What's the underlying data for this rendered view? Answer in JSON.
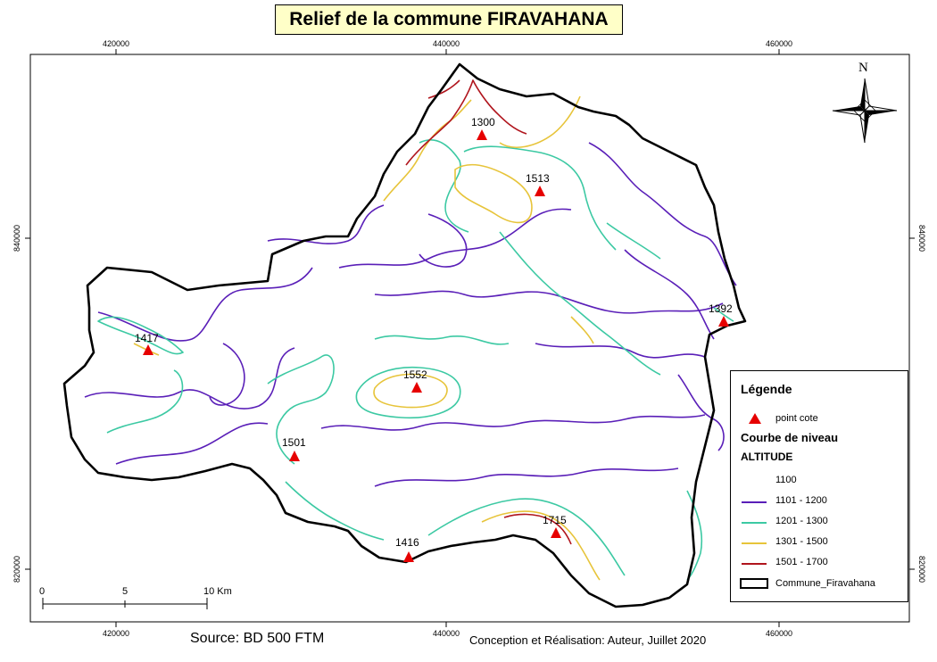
{
  "title": "Relief de la commune FIRAVAHANA",
  "ticks": {
    "top": [
      "420000",
      "440000",
      "460000"
    ],
    "bottom": [
      "420000",
      "440000",
      "460000"
    ],
    "left": [
      "840000",
      "820000"
    ],
    "right": [
      "840000",
      "820000"
    ]
  },
  "north_label": "N",
  "spot_heights": [
    {
      "label": "1300"
    },
    {
      "label": "1513"
    },
    {
      "label": "1392"
    },
    {
      "label": "1417"
    },
    {
      "label": "1552"
    },
    {
      "label": "1501"
    },
    {
      "label": "1715"
    },
    {
      "label": "1416"
    }
  ],
  "legend": {
    "title": "Légende",
    "spot_label": "point cote",
    "contour_title": "Courbe de niveau",
    "field": "ALTITUDE",
    "classes": [
      {
        "label": "1100",
        "color": "#ffffff"
      },
      {
        "label": "1101 - 1200",
        "color": "#5a1fb8"
      },
      {
        "label": "1201 - 1300",
        "color": "#3cc9a3"
      },
      {
        "label": "1301 - 1500",
        "color": "#e7c43a"
      },
      {
        "label": "1501 - 1700",
        "color": "#b0151d"
      }
    ],
    "boundary_label": "Commune_Firavahana"
  },
  "scale_bar": {
    "labels": [
      "0",
      "5",
      "10 Km"
    ]
  },
  "source": "Source: BD 500 FTM",
  "credit": "Conception et Réalisation: Auteur, Juillet 2020",
  "colors": {
    "spot": "#e60000",
    "title_bg": "#ffffc8",
    "boundary": "#000000"
  }
}
